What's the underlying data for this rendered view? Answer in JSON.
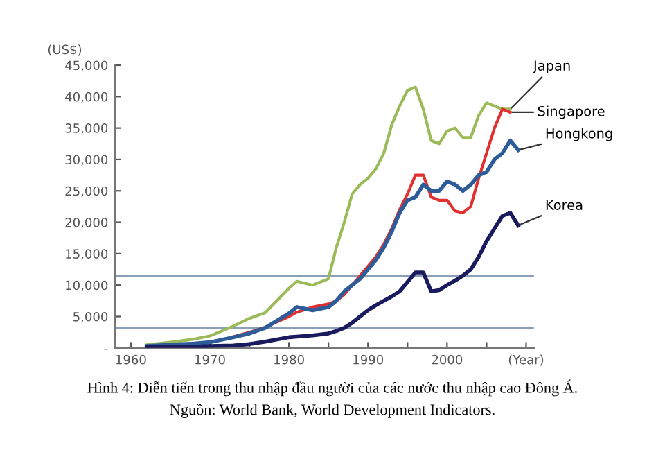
{
  "chart_data": {
    "type": "line",
    "ylabel": "(US$)",
    "x": [
      1962,
      1965,
      1968,
      1970,
      1973,
      1975,
      1977,
      1980,
      1981,
      1983,
      1985,
      1986,
      1987,
      1988,
      1989,
      1990,
      1991,
      1992,
      1993,
      1994,
      1995,
      1996,
      1997,
      1998,
      1999,
      2000,
      2001,
      2002,
      2003,
      2004,
      2005,
      2006,
      2007,
      2008,
      2009
    ],
    "series": [
      {
        "name": "Japan",
        "color": "#9bbb59",
        "values": [
          500,
          900,
          1400,
          1900,
          3500,
          4700,
          5600,
          9500,
          10600,
          10000,
          11000,
          16000,
          20000,
          24500,
          26000,
          27000,
          28500,
          31000,
          35500,
          38500,
          41000,
          41500,
          38000,
          33000,
          32500,
          34500,
          35000,
          33500,
          33500,
          37000,
          39000,
          38500,
          38000,
          38000,
          null
        ]
      },
      {
        "name": "Singapore",
        "color": "#e03030",
        "values": [
          null,
          null,
          null,
          null,
          1800,
          2500,
          3300,
          5000,
          5700,
          6500,
          7000,
          7500,
          8500,
          10000,
          11500,
          13000,
          14500,
          16500,
          19000,
          22000,
          24500,
          27500,
          27500,
          24000,
          23500,
          23500,
          21800,
          21500,
          22500,
          27000,
          31000,
          35000,
          38000,
          37500,
          null
        ]
      },
      {
        "name": "Hongkong",
        "color": "#2e5c99",
        "values": [
          300,
          500,
          700,
          900,
          1700,
          2300,
          3200,
          5500,
          6500,
          6000,
          6500,
          7500,
          9000,
          10000,
          11000,
          12500,
          14000,
          16000,
          18500,
          21500,
          23500,
          24000,
          26000,
          25000,
          25000,
          26500,
          26000,
          25000,
          26000,
          27500,
          28000,
          30000,
          31000,
          33000,
          31500
        ]
      },
      {
        "name": "Korea",
        "color": "#1a1a5e",
        "values": [
          100,
          200,
          200,
          300,
          400,
          600,
          1000,
          1700,
          1800,
          2000,
          2300,
          2700,
          3200,
          4000,
          5000,
          6000,
          6800,
          7500,
          8200,
          9000,
          10500,
          12000,
          12000,
          9000,
          9200,
          10000,
          10700,
          11500,
          12500,
          14500,
          17000,
          19000,
          21000,
          21500,
          19500
        ]
      }
    ],
    "xlim": [
      1958,
      2011
    ],
    "xticks": [
      {
        "value": 1960,
        "label": "1960"
      },
      {
        "value": 1965,
        "label": null
      },
      {
        "value": 1970,
        "label": "1970"
      },
      {
        "value": 1975,
        "label": null
      },
      {
        "value": 1980,
        "label": "1980"
      },
      {
        "value": 1985,
        "label": null
      },
      {
        "value": 1990,
        "label": "1990"
      },
      {
        "value": 1995,
        "label": null
      },
      {
        "value": 2000,
        "label": "2000"
      },
      {
        "value": 2005,
        "label": null
      },
      {
        "value": 2010,
        "label": "(Year)"
      }
    ],
    "ylim": [
      0,
      45000
    ],
    "yticks": [
      {
        "value": 0,
        "label": "-"
      },
      {
        "value": 5000,
        "label": "5,000"
      },
      {
        "value": 10000,
        "label": "10,000"
      },
      {
        "value": 15000,
        "label": "15,000"
      },
      {
        "value": 20000,
        "label": "20,000"
      },
      {
        "value": 25000,
        "label": "25,000"
      },
      {
        "value": 30000,
        "label": "30,000"
      },
      {
        "value": 35000,
        "label": "35,000"
      },
      {
        "value": 40000,
        "label": "40,000"
      },
      {
        "value": 45000,
        "label": "45,000"
      }
    ],
    "ref_lines": [
      {
        "axis": "y",
        "value": 11500,
        "color": "#8aa0b8"
      },
      {
        "axis": "y",
        "value": 3200,
        "color": "#8aa0b8"
      }
    ],
    "grid": false,
    "legend": false,
    "marker": "none",
    "line_style": "solid",
    "annotations": [
      "Hình 4: Diễn tiến trong thu nhập đầu người của các nước thu nhập cao Đông Á.",
      "Nguồn: World Bank, World Development Indicators."
    ]
  }
}
